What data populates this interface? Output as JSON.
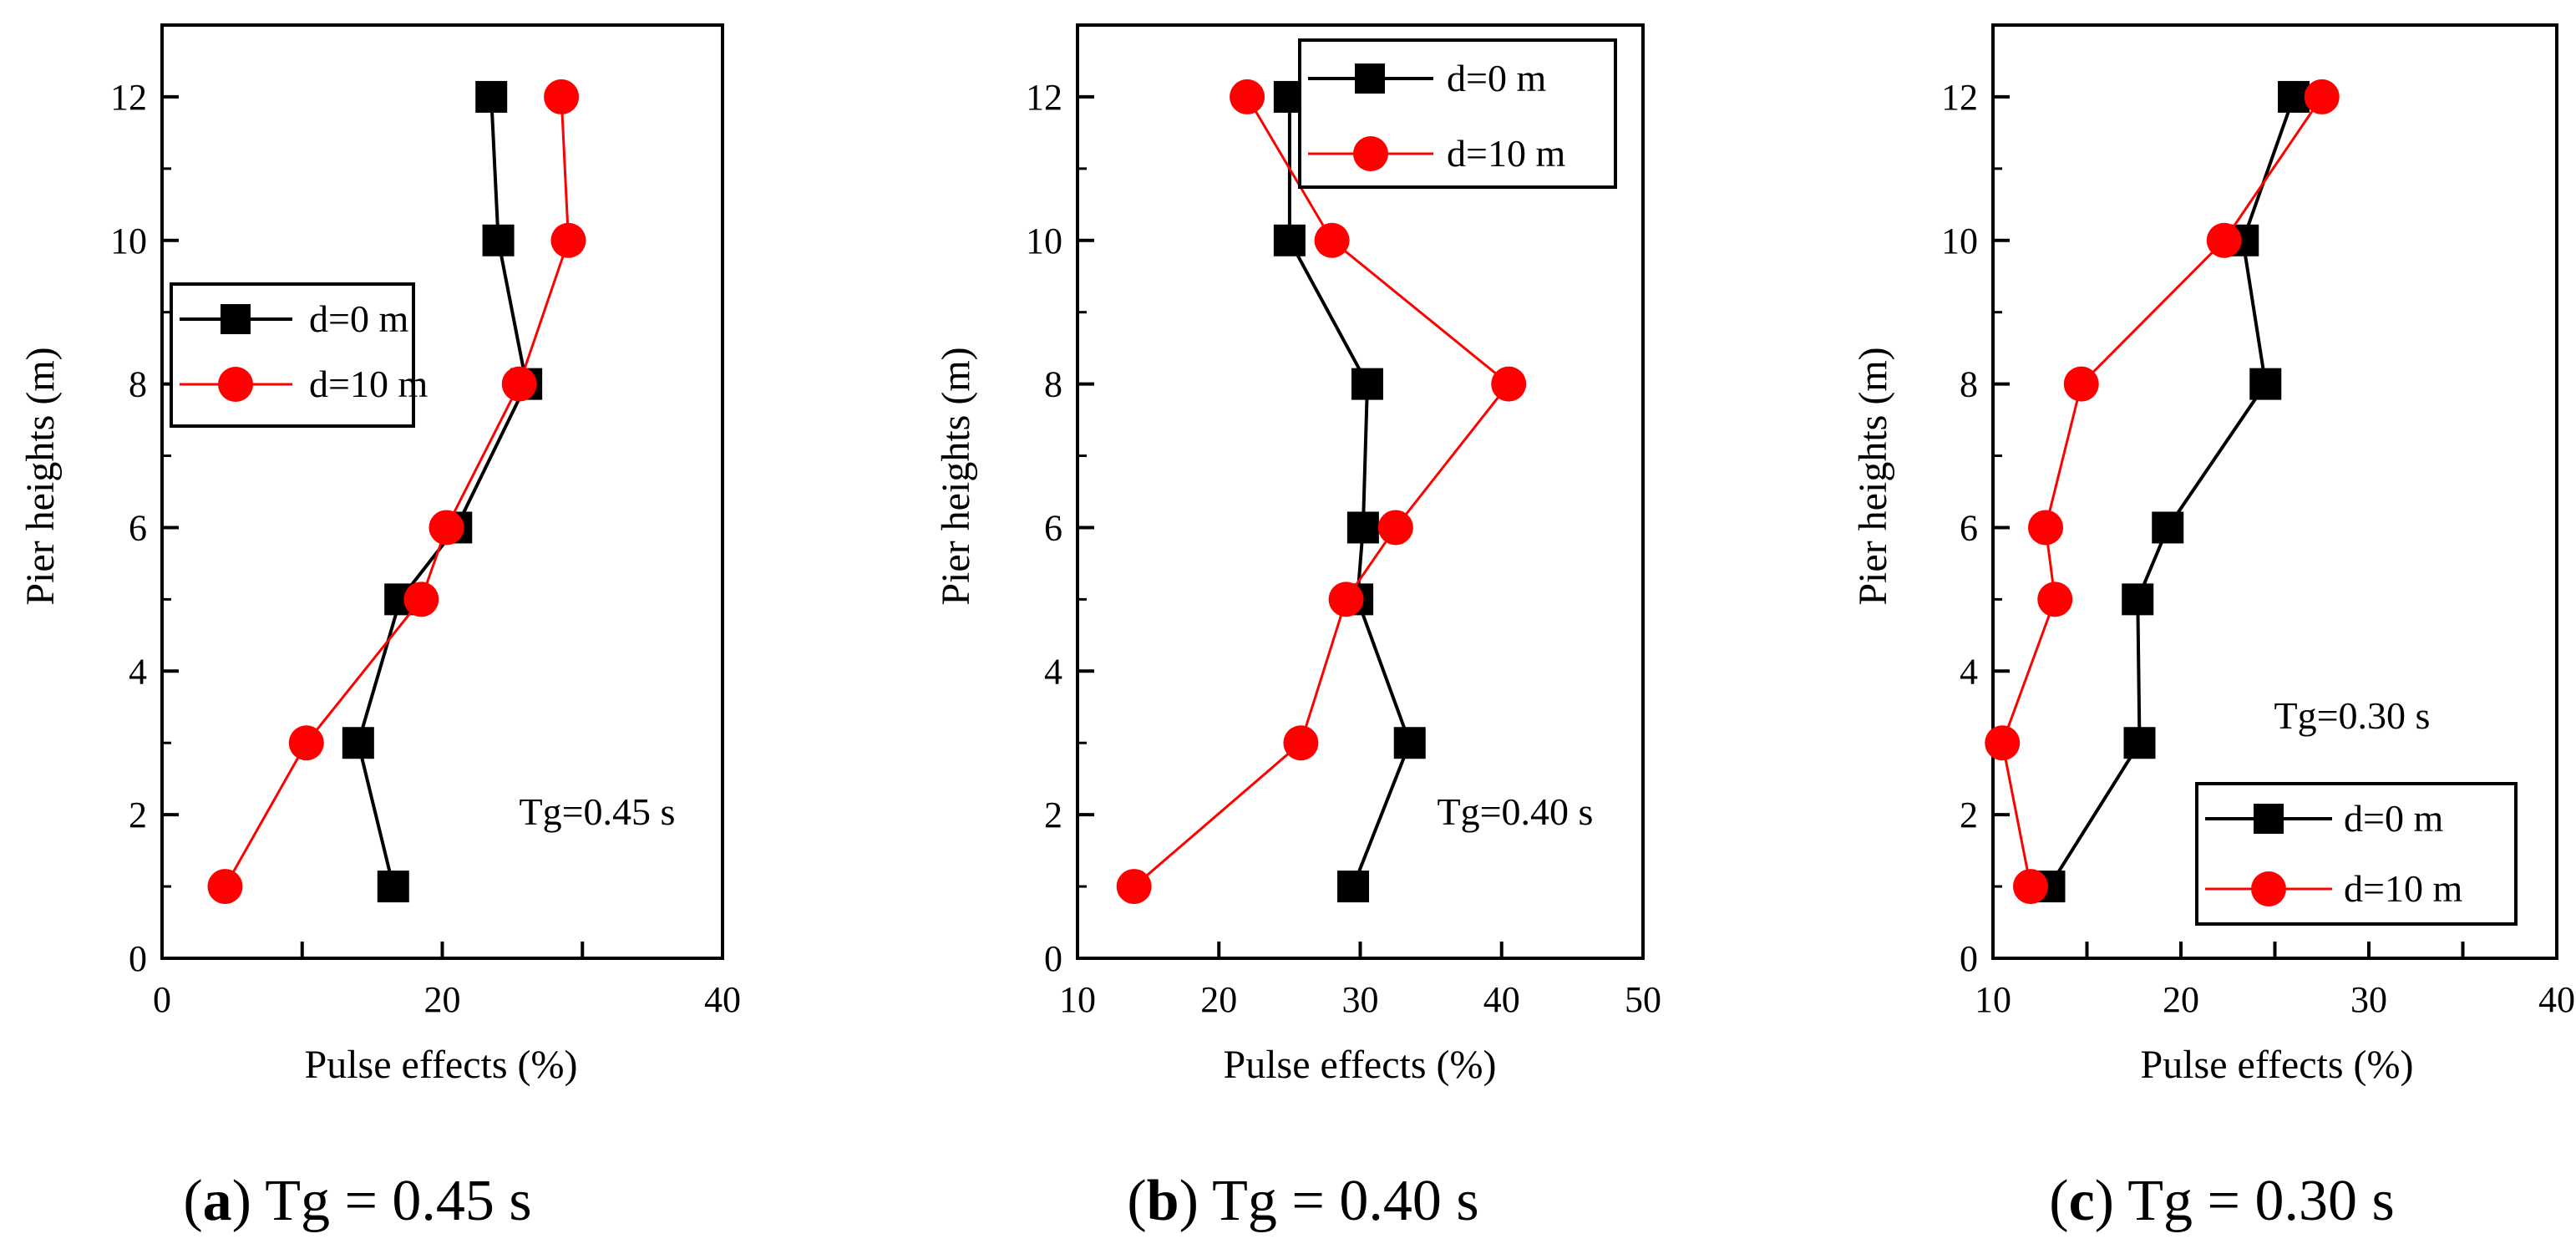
{
  "chart_data": [
    {
      "id": "a",
      "type": "line",
      "orientation": "vertical",
      "xlabel": "Pulse effects (%)",
      "ylabel": "Pier heights (m)",
      "xlim": [
        0,
        40
      ],
      "ylim": [
        0,
        13
      ],
      "xticks": [
        0,
        10,
        20,
        30,
        40
      ],
      "xtick_labels": [
        "0",
        "20",
        "40"
      ],
      "yticks": [
        0,
        2,
        4,
        6,
        8,
        10,
        12
      ],
      "ytick_labels": [
        "0",
        "2",
        "4",
        "6",
        "8",
        "10",
        "12"
      ],
      "annotation": "Tg=0.45 s",
      "legend_position": "center-left",
      "caption": {
        "letter": "a",
        "open": "(",
        "close": ")",
        "text": " Tg = 0.45 s"
      },
      "series": [
        {
          "name": "d=0 m",
          "color": "#000000",
          "marker": "square",
          "x": [
            16.5,
            14.0,
            17.0,
            21.0,
            26.0,
            24.0,
            23.5
          ],
          "y": [
            1,
            3,
            5,
            6,
            8,
            10,
            12
          ]
        },
        {
          "name": "d=10 m",
          "color": "#ff0000",
          "marker": "circle",
          "x": [
            4.5,
            10.3,
            18.5,
            20.3,
            25.5,
            29.0,
            28.5
          ],
          "y": [
            1,
            3,
            5,
            6,
            8,
            10,
            12
          ]
        }
      ]
    },
    {
      "id": "b",
      "type": "line",
      "orientation": "vertical",
      "xlabel": "Pulse effects (%)",
      "ylabel": "Pier heights (m)",
      "xlim": [
        10,
        50
      ],
      "ylim": [
        0,
        13
      ],
      "xticks": [
        10,
        20,
        30,
        40,
        50
      ],
      "xtick_labels": [
        "10",
        "20",
        "30",
        "40",
        "50"
      ],
      "yticks": [
        0,
        2,
        4,
        6,
        8,
        10,
        12
      ],
      "ytick_labels": [
        "0",
        "2",
        "4",
        "6",
        "8",
        "10",
        "12"
      ],
      "annotation": "Tg=0.40 s",
      "legend_position": "top-right",
      "caption": {
        "letter": "b",
        "open": "(",
        "close": ")",
        "text": " Tg = 0.40 s"
      },
      "series": [
        {
          "name": "d=0 m",
          "color": "#000000",
          "marker": "square",
          "x": [
            29.5,
            33.5,
            29.8,
            30.2,
            30.5,
            25.0,
            25.0
          ],
          "y": [
            1,
            3,
            5,
            6,
            8,
            10,
            12
          ]
        },
        {
          "name": "d=10 m",
          "color": "#ff0000",
          "marker": "circle",
          "x": [
            14.0,
            25.8,
            29.0,
            32.5,
            40.5,
            28.0,
            22.0
          ],
          "y": [
            1,
            3,
            5,
            6,
            8,
            10,
            12
          ]
        }
      ]
    },
    {
      "id": "c",
      "type": "line",
      "orientation": "vertical",
      "xlabel": "Pulse effects (%)",
      "ylabel": "Pier heights (m)",
      "xlim": [
        10,
        40
      ],
      "ylim": [
        0,
        13
      ],
      "xticks": [
        10,
        15,
        20,
        25,
        30,
        35,
        40
      ],
      "xtick_labels": [
        "10",
        "20",
        "30",
        "40"
      ],
      "yticks": [
        0,
        2,
        4,
        6,
        8,
        10,
        12
      ],
      "ytick_labels": [
        "0",
        "2",
        "4",
        "6",
        "8",
        "10",
        "12"
      ],
      "annotation": "Tg=0.30 s",
      "legend_position": "bottom-right",
      "caption": {
        "letter": "c",
        "open": "(",
        "close": ")",
        "text": " Tg = 0.30 s"
      },
      "series": [
        {
          "name": "d=0 m",
          "color": "#000000",
          "marker": "square",
          "x": [
            13.0,
            17.8,
            17.7,
            19.3,
            24.5,
            23.3,
            26.0
          ],
          "y": [
            1,
            3,
            5,
            6,
            8,
            10,
            12
          ]
        },
        {
          "name": "d=10 m",
          "color": "#ff0000",
          "marker": "circle",
          "x": [
            12.0,
            10.5,
            13.3,
            12.8,
            14.7,
            22.3,
            27.5
          ],
          "y": [
            1,
            3,
            5,
            6,
            8,
            10,
            12
          ]
        }
      ]
    }
  ]
}
